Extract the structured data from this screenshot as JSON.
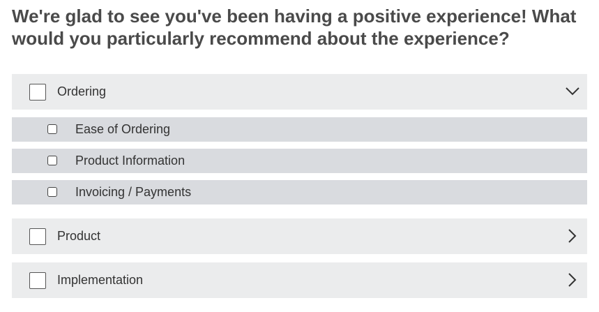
{
  "question": "We're glad to see you've been having a positive experience! What would you particularly recommend about the experience?",
  "groups": [
    {
      "label": "Ordering",
      "expanded": true,
      "checked": false,
      "chevron_icon": "chevron-down-icon",
      "items": [
        {
          "label": "Ease of Ordering",
          "checked": false
        },
        {
          "label": "Product Information",
          "checked": false
        },
        {
          "label": "Invoicing / Payments",
          "checked": false
        }
      ]
    },
    {
      "label": "Product",
      "expanded": false,
      "checked": false,
      "chevron_icon": "chevron-right-icon"
    },
    {
      "label": "Implementation",
      "expanded": false,
      "checked": false,
      "chevron_icon": "chevron-right-icon"
    }
  ],
  "colors": {
    "group_bg": "#ebeced",
    "sub_bg": "#d9dbdf",
    "text": "#333333",
    "question_text": "#4a4a4a"
  }
}
